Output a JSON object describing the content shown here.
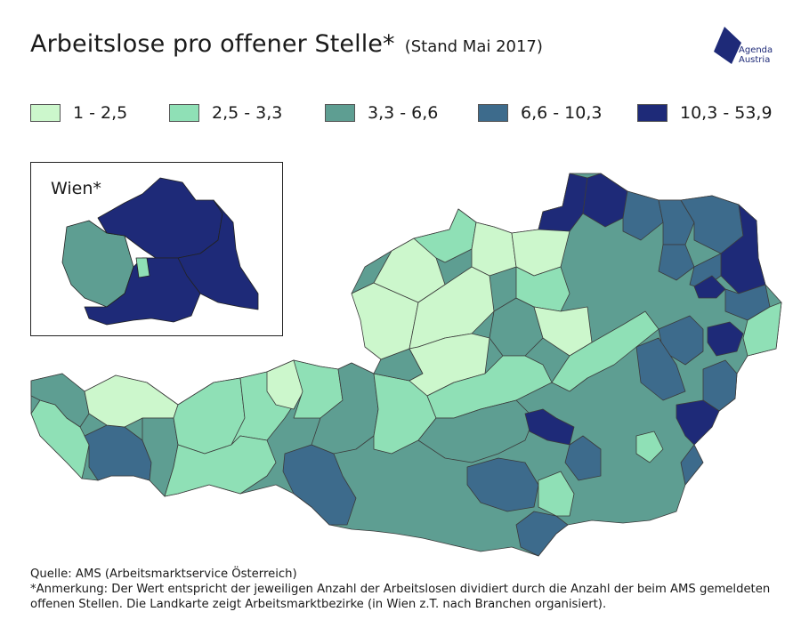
{
  "title": {
    "main": "Arbeitslose pro offener Stelle*",
    "sub": "(Stand Mai 2017)"
  },
  "logo": {
    "line1": "Agenda",
    "line2": "Austria",
    "color": "#1e2a78"
  },
  "legend": [
    {
      "label": "1 - 2,5",
      "color": "#ccf7cc"
    },
    {
      "label": "2,5 - 3,3",
      "color": "#8fe0b6"
    },
    {
      "label": "3,3 - 6,6",
      "color": "#5e9e92"
    },
    {
      "label": "6,6 - 10,3",
      "color": "#3d6b8c"
    },
    {
      "label": "10,3 - 53,9",
      "color": "#1e2a78"
    }
  ],
  "inset": {
    "label": "Wien*"
  },
  "footer": {
    "source": "Quelle: AMS (Arbeitsmarktservice Österreich)",
    "note_line1": "*Anmerkung: Der Wert entspricht der jeweiligen Anzahl der Arbeitslosen dividiert durch die Anzahl der beim AMS gemeldeten",
    "note_line2": "offenen Stellen. Die Landkarte zeigt Arbeitsmarktbezirke (in Wien z.T. nach Branchen organisiert)."
  }
}
